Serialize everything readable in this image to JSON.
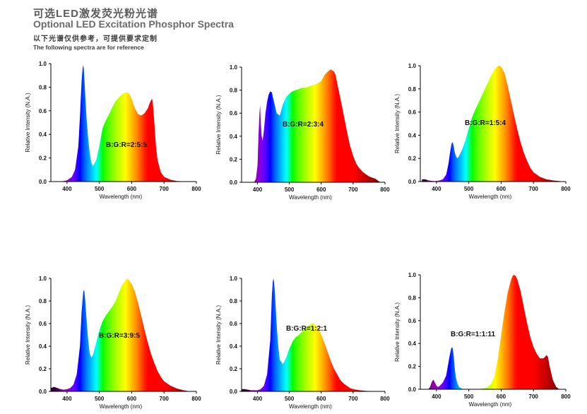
{
  "header": {
    "title_cn": "可选LED激发荧光粉光谱",
    "title_en": "Optional LED Excitation Phosphor Spectra",
    "subtitle_cn": "以下光谱仅供参考，可提供要求定制",
    "subtitle_en": "The following spectra are for reference"
  },
  "chart_data": [
    {
      "type": "area",
      "ratio_label": "B:G:R=2:5:5",
      "xlabel": "Wavelength (nm)",
      "ylabel": "Relative Intensity (N.A.)",
      "xlim": [
        350,
        800
      ],
      "ylim": [
        0,
        1.0
      ],
      "xticks": [
        "400",
        "500",
        "600",
        "700",
        "800"
      ],
      "yticks": [
        "0.0",
        "0.2",
        "0.4",
        "0.6",
        "0.8",
        "1.0"
      ],
      "x": [
        380,
        400,
        415,
        425,
        435,
        440,
        445,
        448,
        450,
        452,
        455,
        460,
        465,
        470,
        475,
        480,
        490,
        500,
        510,
        520,
        530,
        540,
        550,
        560,
        570,
        580,
        585,
        590,
        595,
        600,
        610,
        620,
        630,
        640,
        650,
        655,
        660,
        663,
        665,
        670,
        675,
        680,
        690,
        700,
        720,
        740,
        760,
        780
      ],
      "y": [
        0,
        0.01,
        0.04,
        0.1,
        0.3,
        0.55,
        0.85,
        0.96,
        0.99,
        0.95,
        0.8,
        0.55,
        0.38,
        0.25,
        0.16,
        0.13,
        0.18,
        0.3,
        0.45,
        0.52,
        0.57,
        0.63,
        0.68,
        0.71,
        0.74,
        0.755,
        0.755,
        0.75,
        0.73,
        0.7,
        0.62,
        0.57,
        0.56,
        0.58,
        0.62,
        0.66,
        0.69,
        0.7,
        0.68,
        0.5,
        0.3,
        0.18,
        0.08,
        0.04,
        0.015,
        0.005,
        0.002,
        0
      ]
    },
    {
      "type": "area",
      "ratio_label": "B:G:R=2:3:4",
      "xlabel": "Wavelength (nm)",
      "ylabel": "Relative Intensity (N.A.)",
      "xlim": [
        350,
        800
      ],
      "ylim": [
        0,
        1.0
      ],
      "xticks": [
        "400",
        "500",
        "600",
        "700",
        "800"
      ],
      "yticks": [
        "0.0",
        "0.2",
        "0.4",
        "0.6",
        "0.8",
        "1.0"
      ],
      "x": [
        380,
        390,
        395,
        400,
        403,
        406,
        408,
        410,
        413,
        416,
        420,
        425,
        430,
        435,
        440,
        445,
        450,
        455,
        460,
        470,
        480,
        490,
        500,
        510,
        520,
        530,
        540,
        550,
        560,
        570,
        580,
        590,
        600,
        610,
        620,
        630,
        635,
        640,
        645,
        650,
        660,
        670,
        680,
        690,
        700,
        710,
        720,
        730,
        740,
        750,
        760,
        770,
        780,
        785
      ],
      "y": [
        0,
        0.005,
        0.03,
        0.15,
        0.4,
        0.6,
        0.67,
        0.52,
        0.4,
        0.36,
        0.45,
        0.6,
        0.7,
        0.76,
        0.79,
        0.78,
        0.72,
        0.66,
        0.6,
        0.58,
        0.68,
        0.74,
        0.77,
        0.79,
        0.8,
        0.81,
        0.82,
        0.82,
        0.83,
        0.84,
        0.85,
        0.86,
        0.88,
        0.93,
        0.96,
        0.98,
        0.97,
        0.96,
        0.93,
        0.86,
        0.73,
        0.59,
        0.45,
        0.32,
        0.23,
        0.16,
        0.12,
        0.09,
        0.07,
        0.05,
        0.04,
        0.03,
        0.01,
        0
      ]
    },
    {
      "type": "area",
      "ratio_label": "B:G:R=1:5:4",
      "xlabel": "Wavelength (nm)",
      "ylabel": "Relative Intensity (N.A.)",
      "xlim": [
        350,
        800
      ],
      "ylim": [
        0,
        1.0
      ],
      "xticks": [
        "400",
        "500",
        "600",
        "700",
        "800"
      ],
      "yticks": [
        "0.0",
        "0.2",
        "0.4",
        "0.6",
        "0.8",
        "1.0"
      ],
      "x": [
        355,
        365,
        375,
        390,
        400,
        410,
        420,
        430,
        437,
        443,
        447,
        450,
        453,
        456,
        460,
        465,
        470,
        480,
        490,
        500,
        510,
        520,
        530,
        540,
        550,
        560,
        570,
        580,
        590,
        595,
        600,
        610,
        620,
        630,
        640,
        650,
        660,
        670,
        680,
        690,
        700,
        720,
        740,
        760,
        780,
        790
      ],
      "y": [
        0.02,
        0.02,
        0.01,
        0.005,
        0.005,
        0.01,
        0.02,
        0.06,
        0.15,
        0.27,
        0.33,
        0.34,
        0.31,
        0.26,
        0.22,
        0.2,
        0.22,
        0.28,
        0.36,
        0.46,
        0.55,
        0.62,
        0.68,
        0.74,
        0.8,
        0.86,
        0.92,
        0.97,
        0.995,
        1.0,
        0.99,
        0.94,
        0.83,
        0.7,
        0.57,
        0.45,
        0.34,
        0.25,
        0.18,
        0.12,
        0.08,
        0.04,
        0.02,
        0.01,
        0.005,
        0
      ]
    },
    {
      "type": "area",
      "ratio_label": "B:G:R=3:9:5",
      "xlabel": "Wavelength (nm)",
      "ylabel": "Relative Intensity (N.A.)",
      "xlim": [
        350,
        800
      ],
      "ylim": [
        0,
        1.0
      ],
      "xticks": [
        "400",
        "500",
        "600",
        "700",
        "800"
      ],
      "yticks": [
        "0.0",
        "0.2",
        "0.4",
        "0.6",
        "0.8",
        "1.0"
      ],
      "x": [
        350,
        360,
        370,
        380,
        390,
        400,
        410,
        420,
        430,
        440,
        445,
        450,
        453,
        456,
        460,
        465,
        470,
        475,
        480,
        490,
        500,
        510,
        520,
        530,
        540,
        550,
        560,
        570,
        580,
        585,
        590,
        600,
        610,
        620,
        630,
        640,
        650,
        660,
        670,
        680,
        690,
        700,
        720,
        740,
        760,
        780
      ],
      "y": [
        0.03,
        0.04,
        0.03,
        0.02,
        0.015,
        0.02,
        0.03,
        0.06,
        0.15,
        0.4,
        0.7,
        0.88,
        0.9,
        0.82,
        0.65,
        0.47,
        0.34,
        0.3,
        0.32,
        0.43,
        0.54,
        0.62,
        0.67,
        0.71,
        0.75,
        0.8,
        0.87,
        0.94,
        0.98,
        0.995,
        0.99,
        0.95,
        0.88,
        0.78,
        0.66,
        0.54,
        0.43,
        0.33,
        0.25,
        0.18,
        0.13,
        0.09,
        0.05,
        0.025,
        0.01,
        0
      ]
    },
    {
      "type": "area",
      "ratio_label": "B:G:R=1:2:1",
      "xlabel": "Wavelength (nm)",
      "ylabel": "Relative Intensity (N.A.)",
      "xlim": [
        350,
        800
      ],
      "ylim": [
        0,
        1.0
      ],
      "xticks": [
        "400",
        "500",
        "600",
        "700",
        "800"
      ],
      "yticks": [
        "0.0",
        "0.2",
        "0.4",
        "0.6",
        "0.8",
        "1.0"
      ],
      "x": [
        350,
        360,
        370,
        380,
        390,
        400,
        410,
        420,
        430,
        440,
        445,
        448,
        450,
        452,
        455,
        460,
        465,
        470,
        480,
        490,
        500,
        510,
        520,
        530,
        540,
        550,
        560,
        570,
        575,
        580,
        585,
        590,
        600,
        610,
        620,
        630,
        640,
        650,
        660,
        670,
        680,
        690,
        700,
        720,
        740,
        760,
        780
      ],
      "y": [
        0.02,
        0.02,
        0.015,
        0.01,
        0.01,
        0.01,
        0.02,
        0.05,
        0.15,
        0.45,
        0.85,
        0.97,
        1.0,
        0.97,
        0.85,
        0.6,
        0.4,
        0.28,
        0.24,
        0.3,
        0.38,
        0.44,
        0.48,
        0.5,
        0.53,
        0.56,
        0.58,
        0.6,
        0.6,
        0.59,
        0.58,
        0.56,
        0.5,
        0.43,
        0.35,
        0.27,
        0.2,
        0.15,
        0.1,
        0.07,
        0.05,
        0.03,
        0.02,
        0.01,
        0.005,
        0.002,
        0
      ]
    },
    {
      "type": "area",
      "ratio_label": "B:G:R=1:1:11",
      "xlabel": "Wavelength (nm)",
      "ylabel": "Relative Intensity (N.A.)",
      "xlim": [
        350,
        800
      ],
      "ylim": [
        0,
        1.0
      ],
      "xticks": [
        "400",
        "500",
        "600",
        "700",
        "800"
      ],
      "yticks": [
        "0.0",
        "0.2",
        "0.4",
        "0.6",
        "0.8",
        "1.0"
      ],
      "x": [
        375,
        380,
        385,
        390,
        395,
        400,
        405,
        410,
        420,
        430,
        435,
        440,
        445,
        448,
        450,
        453,
        456,
        460,
        465,
        470,
        480,
        490,
        500,
        510,
        520,
        530,
        540,
        550,
        560,
        570,
        580,
        590,
        600,
        610,
        620,
        630,
        635,
        640,
        645,
        650,
        660,
        670,
        680,
        690,
        700,
        710,
        720,
        730,
        735,
        740,
        745,
        750,
        760,
        770,
        780
      ],
      "y": [
        0,
        0.02,
        0.06,
        0.085,
        0.06,
        0.03,
        0.02,
        0.03,
        0.06,
        0.12,
        0.2,
        0.28,
        0.35,
        0.37,
        0.36,
        0.3,
        0.2,
        0.1,
        0.05,
        0.02,
        0.005,
        0,
        0,
        0,
        0,
        0,
        0.005,
        0.01,
        0.02,
        0.05,
        0.12,
        0.27,
        0.47,
        0.67,
        0.84,
        0.95,
        0.99,
        1.0,
        0.99,
        0.96,
        0.86,
        0.72,
        0.58,
        0.46,
        0.37,
        0.31,
        0.27,
        0.27,
        0.28,
        0.3,
        0.28,
        0.2,
        0.08,
        0.02,
        0
      ]
    }
  ]
}
